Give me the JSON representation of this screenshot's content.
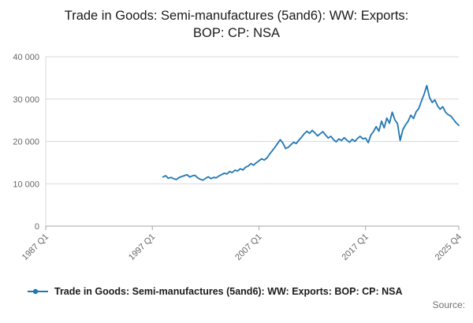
{
  "page": {
    "title": "Trade in Goods: Semi-manufactures (5and6): WW: Exports: BOP: CP: NSA"
  },
  "legend": {
    "label": "Trade in Goods: Semi-manufactures (5and6): WW: Exports: BOP: CP: NSA"
  },
  "footer": {
    "source": "Source:"
  },
  "chart_data": {
    "type": "line",
    "title": "Trade in Goods: Semi-manufactures (5and6): WW: Exports: BOP: CP: NSA",
    "xlabel": "",
    "ylabel": "",
    "ylim": [
      0,
      40000
    ],
    "grid": true,
    "legend_position": "bottom-left",
    "line_color": "#1f77b4",
    "grid_color": "#d9d9d9",
    "axis_color": "#a6a6a6",
    "x_axis": {
      "total_quarters": 155,
      "ticks": [
        {
          "label": "1987 Q1",
          "q": 0
        },
        {
          "label": "1997 Q1",
          "q": 40
        },
        {
          "label": "2007 Q1",
          "q": 80
        },
        {
          "label": "2017 Q1",
          "q": 120
        },
        {
          "label": "2025 Q4",
          "q": 155
        }
      ]
    },
    "y_axis": {
      "min": 0,
      "max": 40000,
      "ticks": [
        {
          "label": "0",
          "v": 0
        },
        {
          "label": "10 000",
          "v": 10000
        },
        {
          "label": "20 000",
          "v": 20000
        },
        {
          "label": "30 000",
          "v": 30000
        },
        {
          "label": "40 000",
          "v": 40000
        }
      ]
    },
    "series": [
      {
        "name": "Trade in Goods: Semi-manufactures (5and6): WW: Exports: BOP: CP: NSA",
        "frequency": "quarterly",
        "start": "1998 Q1",
        "start_quarter_index": 44,
        "values": [
          11600,
          11900,
          11300,
          11500,
          11200,
          11000,
          11450,
          11700,
          11900,
          12150,
          11600,
          11850,
          12000,
          11400,
          11050,
          10850,
          11300,
          11650,
          11200,
          11500,
          11400,
          11850,
          12150,
          12500,
          12300,
          12900,
          12650,
          13200,
          13000,
          13550,
          13250,
          13900,
          14200,
          14750,
          14400,
          14950,
          15400,
          15900,
          15600,
          16100,
          17000,
          17800,
          18600,
          19500,
          20400,
          19600,
          18300,
          18600,
          19200,
          19800,
          19500,
          20300,
          21000,
          21800,
          22400,
          21900,
          22600,
          22000,
          21300,
          21800,
          22300,
          21500,
          20800,
          21200,
          20400,
          19900,
          20600,
          20200,
          20900,
          20300,
          19800,
          20500,
          20000,
          20700,
          21200,
          20600,
          20800,
          19700,
          21500,
          22300,
          23500,
          22400,
          24800,
          23200,
          25500,
          24300,
          26900,
          25100,
          24200,
          20200,
          22800,
          23900,
          24800,
          26200,
          25400,
          27000,
          27800,
          29600,
          31200,
          33200,
          30400,
          29200,
          29800,
          28400,
          27600,
          28200,
          26900,
          26300,
          26000,
          25200,
          24400,
          23800
        ]
      }
    ]
  }
}
